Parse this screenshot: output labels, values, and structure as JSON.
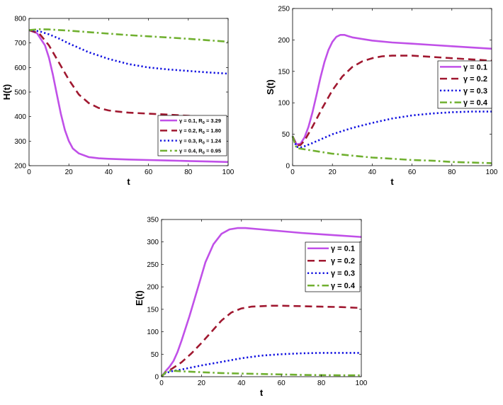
{
  "colors": {
    "s1": "#c050e8",
    "s2": "#a01830",
    "s3": "#1010e0",
    "s4": "#70b030"
  },
  "chart_data": [
    {
      "id": "H",
      "type": "line",
      "xlabel": "t",
      "ylabel": "H(t)",
      "xlim": [
        0,
        100
      ],
      "ylim": [
        200,
        800
      ],
      "xticks": [
        "0",
        "20",
        "40",
        "60",
        "80",
        "100"
      ],
      "yticks": [
        "200",
        "300",
        "400",
        "500",
        "600",
        "700",
        "800"
      ],
      "legend_position": "bottom-right",
      "series": [
        {
          "name": "γ = 0.1, R0 = 3.29",
          "gamma": "γ = 0.1",
          "r0_label": "R",
          "r0_sub": "0",
          "r0_value": "= 3.29",
          "x": [
            0,
            4,
            8,
            10,
            12,
            14,
            16,
            18,
            20,
            22,
            25,
            30,
            35,
            40,
            50,
            60,
            70,
            80,
            90,
            100
          ],
          "y": [
            752,
            740,
            690,
            640,
            570,
            490,
            410,
            345,
            300,
            270,
            250,
            235,
            230,
            228,
            225,
            223,
            221,
            219,
            217,
            215
          ]
        },
        {
          "name": "γ = 0.2, R0 = 1.80",
          "gamma": "γ = 0.2",
          "r0_label": "R",
          "r0_sub": "0",
          "r0_value": "= 1.80",
          "x": [
            0,
            5,
            10,
            15,
            20,
            25,
            30,
            35,
            40,
            45,
            50,
            60,
            70,
            80,
            90,
            100
          ],
          "y": [
            752,
            740,
            690,
            620,
            550,
            490,
            455,
            435,
            425,
            420,
            416,
            412,
            408,
            403,
            398,
            393
          ]
        },
        {
          "name": "γ = 0.3, R0 = 1.24",
          "gamma": "γ = 0.3",
          "r0_label": "R",
          "r0_sub": "0",
          "r0_value": "= 1.24",
          "x": [
            0,
            5,
            10,
            15,
            20,
            30,
            40,
            50,
            60,
            70,
            80,
            90,
            100
          ],
          "y": [
            752,
            748,
            735,
            718,
            698,
            662,
            635,
            614,
            600,
            592,
            586,
            580,
            575
          ]
        },
        {
          "name": "γ = 0.4, R0 = 0.95",
          "gamma": "γ = 0.4",
          "r0_label": "R",
          "r0_sub": "0",
          "r0_value": "= 0.95",
          "x": [
            0,
            5,
            10,
            20,
            30,
            40,
            50,
            60,
            70,
            80,
            90,
            100
          ],
          "y": [
            752,
            756,
            755,
            750,
            744,
            738,
            732,
            727,
            722,
            717,
            711,
            705
          ]
        }
      ]
    },
    {
      "id": "S",
      "type": "line",
      "xlabel": "t",
      "ylabel": "S(t)",
      "xlim": [
        0,
        100
      ],
      "ylim": [
        0,
        250
      ],
      "xticks": [
        "0",
        "20",
        "40",
        "60",
        "80",
        "100"
      ],
      "yticks": [
        "0",
        "50",
        "100",
        "150",
        "200",
        "250"
      ],
      "legend_position": "top-right",
      "series": [
        {
          "name": "γ = 0.1",
          "x": [
            0,
            2,
            4,
            6,
            8,
            10,
            12,
            14,
            16,
            18,
            20,
            22,
            24,
            26,
            28,
            30,
            40,
            50,
            60,
            70,
            80,
            90,
            100
          ],
          "y": [
            47,
            34,
            35,
            45,
            62,
            85,
            112,
            140,
            165,
            184,
            197,
            205,
            208,
            208,
            206,
            204,
            199,
            196,
            194,
            192,
            190,
            188,
            186
          ]
        },
        {
          "name": "γ = 0.2",
          "x": [
            0,
            2,
            4,
            6,
            10,
            15,
            20,
            25,
            30,
            35,
            40,
            45,
            50,
            55,
            60,
            70,
            80,
            90,
            100
          ],
          "y": [
            47,
            32,
            33,
            40,
            62,
            92,
            120,
            142,
            157,
            166,
            171,
            174,
            175,
            175,
            175,
            173,
            171,
            169,
            167
          ]
        },
        {
          "name": "γ = 0.3",
          "x": [
            0,
            2,
            4,
            6,
            10,
            15,
            20,
            30,
            40,
            50,
            60,
            70,
            80,
            90,
            100
          ],
          "y": [
            47,
            30,
            29,
            31,
            36,
            43,
            50,
            60,
            68,
            75,
            80,
            83,
            85,
            86,
            86
          ]
        },
        {
          "name": "γ = 0.4",
          "x": [
            0,
            2,
            4,
            6,
            10,
            20,
            30,
            40,
            50,
            60,
            70,
            80,
            90,
            100
          ],
          "y": [
            47,
            28,
            27,
            26,
            24,
            19,
            16,
            13,
            11,
            9,
            8,
            6,
            5,
            4
          ]
        }
      ]
    },
    {
      "id": "E",
      "type": "line",
      "xlabel": "t",
      "ylabel": "E(t)",
      "xlim": [
        0,
        100
      ],
      "ylim": [
        0,
        350
      ],
      "xticks": [
        "0",
        "20",
        "40",
        "60",
        "80",
        "100"
      ],
      "yticks": [
        "0",
        "50",
        "100",
        "150",
        "200",
        "250",
        "300",
        "350"
      ],
      "legend_position": "top-right",
      "series": [
        {
          "name": "γ = 0.1",
          "x": [
            0,
            2,
            4,
            6,
            8,
            10,
            14,
            18,
            22,
            26,
            30,
            34,
            38,
            42,
            50,
            60,
            70,
            80,
            90,
            100
          ],
          "y": [
            0,
            12,
            22,
            35,
            55,
            80,
            135,
            195,
            255,
            295,
            318,
            328,
            331,
            331,
            328,
            324,
            320,
            317,
            314,
            311
          ]
        },
        {
          "name": "γ = 0.2",
          "x": [
            0,
            2,
            5,
            10,
            15,
            20,
            25,
            30,
            35,
            40,
            45,
            50,
            55,
            60,
            70,
            80,
            90,
            100
          ],
          "y": [
            0,
            10,
            17,
            32,
            52,
            75,
            100,
            125,
            143,
            152,
            156,
            157,
            158,
            158,
            157,
            156,
            155,
            153
          ]
        },
        {
          "name": "γ = 0.3",
          "x": [
            0,
            2,
            5,
            10,
            20,
            30,
            40,
            50,
            60,
            70,
            80,
            90,
            100
          ],
          "y": [
            0,
            8,
            12,
            16,
            25,
            33,
            41,
            47,
            50,
            52,
            53,
            53,
            53
          ]
        },
        {
          "name": "γ = 0.4",
          "x": [
            0,
            2,
            4,
            6,
            10,
            20,
            30,
            40,
            50,
            60,
            70,
            80,
            90,
            100
          ],
          "y": [
            0,
            10,
            13,
            13,
            12,
            10,
            8,
            7,
            6,
            5,
            4,
            3.5,
            3,
            3
          ]
        }
      ]
    }
  ]
}
